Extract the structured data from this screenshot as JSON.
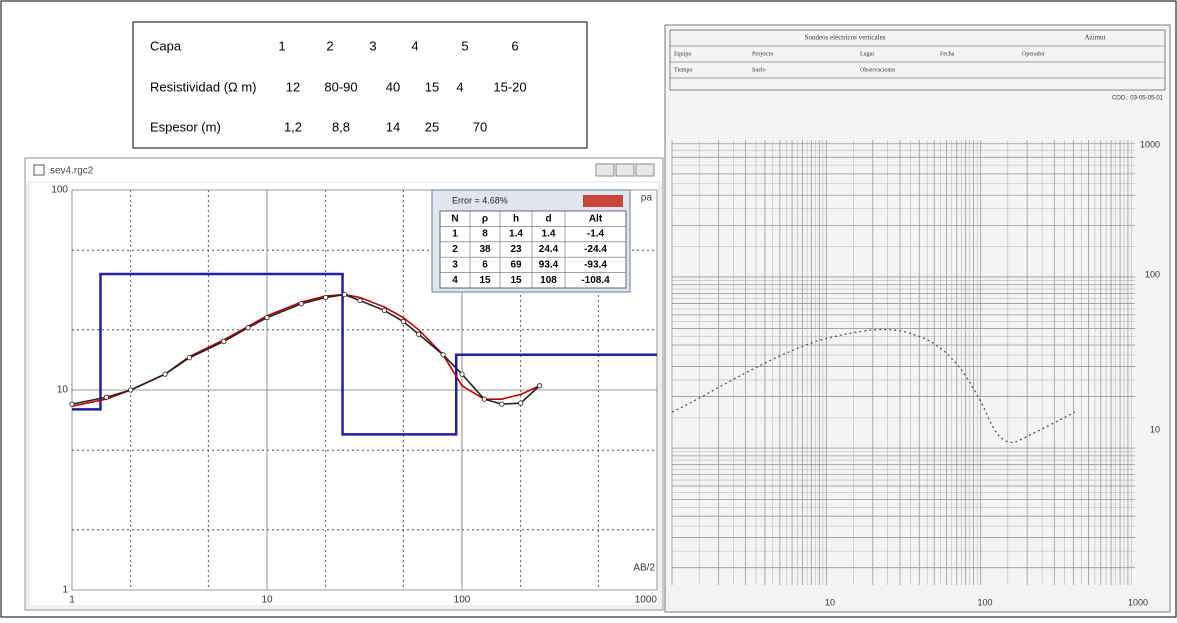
{
  "layer_table": {
    "rows": [
      [
        "Capa",
        "1",
        "2",
        "3",
        "4",
        "5",
        "6"
      ],
      [
        "Resistividad (Ω m)",
        "12",
        "80-90",
        "40",
        "15",
        "4",
        "15-20"
      ],
      [
        "Espesor  (m)",
        "1,2",
        "8,8",
        "14",
        "25",
        "70"
      ]
    ]
  },
  "window": {
    "title": "sev4.rgc2",
    "error_window": {
      "title": "Error = 4.68%",
      "headers": [
        "N",
        "ρ",
        "h",
        "d",
        "Alt"
      ],
      "rows": [
        [
          1,
          8,
          1.4,
          1.4,
          -1.4
        ],
        [
          2,
          38,
          23,
          24.4,
          -24.4
        ],
        [
          3,
          6,
          69,
          93.4,
          -93.4
        ],
        [
          4,
          15,
          15,
          108,
          -108.4
        ]
      ]
    }
  },
  "chart_data": {
    "type": "line",
    "xlabel": "AB/2",
    "ylabel": "ρa",
    "log_x": true,
    "log_y": true,
    "xlim": [
      1,
      1000
    ],
    "ylim": [
      1,
      100
    ],
    "xticks": [
      1,
      10,
      100,
      1000
    ],
    "yticks": [
      1,
      10,
      100
    ],
    "minor_xgrid": [
      2,
      5,
      20,
      50,
      200,
      500
    ],
    "minor_ygrid": [
      2,
      5,
      20,
      50
    ],
    "series": [
      {
        "color": "#1f1fa0",
        "x": [
          1,
          1.4,
          1.4,
          24.4,
          24.4,
          93.4,
          93.4,
          1000
        ],
        "values": [
          8,
          8,
          38,
          38,
          6,
          6,
          15,
          15
        ]
      },
      {
        "color": "#c00000",
        "x": [
          1,
          1.5,
          2,
          3,
          4,
          6,
          8,
          10,
          15,
          20,
          25,
          30,
          40,
          50,
          60,
          80,
          100,
          130,
          160,
          200,
          250
        ],
        "values": [
          8.3,
          9,
          10,
          12,
          14.7,
          17.8,
          20.8,
          23.5,
          27.5,
          29.5,
          30,
          29,
          26,
          23,
          20,
          15,
          10.5,
          9,
          9,
          9.5,
          10.5
        ]
      },
      {
        "color": "#222222",
        "marker": "circle",
        "x": [
          1,
          1.5,
          2,
          3,
          4,
          6,
          8,
          10,
          15,
          20,
          25,
          30,
          40,
          50,
          60,
          80,
          100,
          130,
          160,
          200,
          250
        ],
        "values": [
          8.5,
          9.2,
          10,
          12,
          14.5,
          17.5,
          20.5,
          23,
          27,
          29,
          30,
          28,
          25,
          22,
          19,
          15,
          12,
          9,
          8.5,
          8.6,
          10.5
        ]
      }
    ]
  },
  "paper": {
    "title": "Sondeos eléctricos verticales",
    "azimut": "Azimut",
    "fields": [
      "Equipo",
      "Proyecto",
      "Lugar",
      "Fecha",
      "Operador",
      "Tiempo",
      "Suelo",
      "Observaciones"
    ],
    "code": "COD.: 03-05-05-01",
    "y_labels": [
      "1000",
      "100",
      "10"
    ],
    "x_labels": [
      "10",
      "100",
      "1000"
    ]
  }
}
